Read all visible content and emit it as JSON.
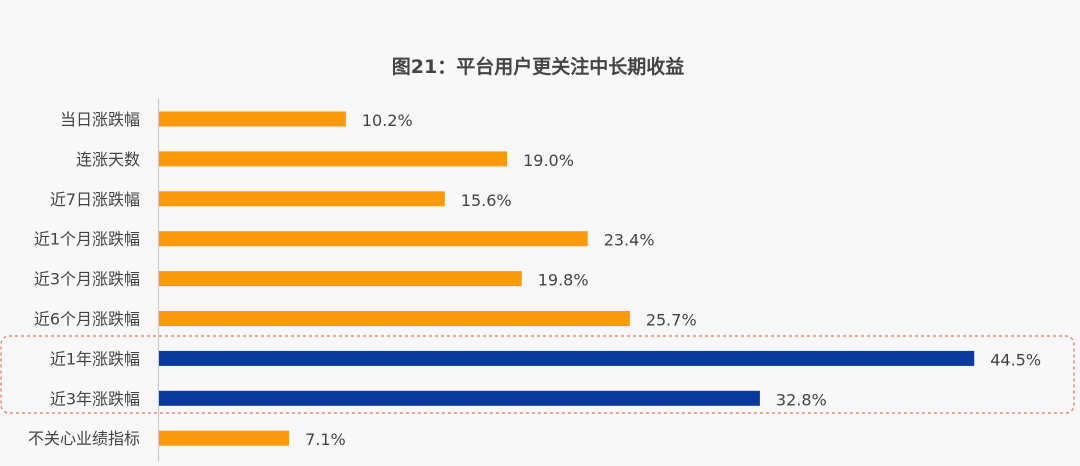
{
  "chart_data": {
    "type": "bar",
    "orientation": "horizontal",
    "title": "图21：平台用户更关注中长期收益",
    "categories": [
      "当日涨跌幅",
      "连涨天数",
      "近7日涨跌幅",
      "近1个月涨跌幅",
      "近3个月涨跌幅",
      "近6个月涨跌幅",
      "近1年涨跌幅",
      "近3年涨跌幅",
      "不关心业绩指标"
    ],
    "values": [
      10.2,
      19.0,
      15.6,
      23.4,
      19.8,
      25.7,
      44.5,
      32.8,
      7.1
    ],
    "labels": [
      "10.2%",
      "19.0%",
      "15.6%",
      "23.4%",
      "19.8%",
      "25.7%",
      "44.5%",
      "32.8%",
      "7.1%"
    ],
    "highlighted": [
      false,
      false,
      false,
      false,
      false,
      false,
      true,
      true,
      false
    ],
    "unit": "%",
    "grid": false,
    "legend": "none",
    "colors": {
      "default": "#f99a0c",
      "highlight": "#0b3a9e",
      "highlight_box": "#e8735a",
      "axis": "#cccccc",
      "text": "#444444"
    }
  }
}
